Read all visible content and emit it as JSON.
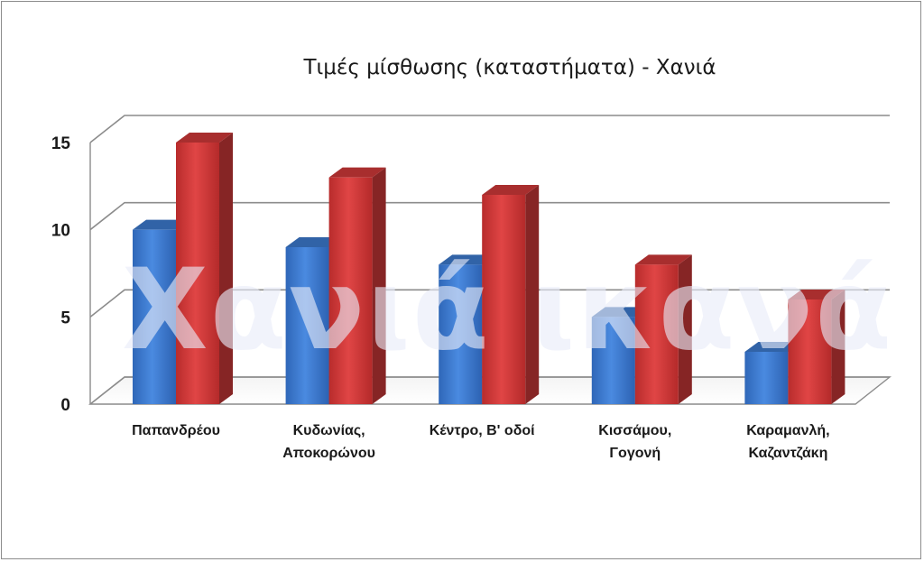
{
  "chart_data": {
    "type": "bar",
    "title": "Τιμές μίσθωσης (καταστήματα) - Χανιά",
    "xlabel": "",
    "ylabel": "",
    "categories": [
      [
        "Παπανδρέου"
      ],
      [
        "Κυδωνίας,",
        "Αποκορώνου"
      ],
      [
        "Κέντρο, Β' οδοί"
      ],
      [
        "Κισσάμου,",
        "Γογονή"
      ],
      [
        "Καραμανλή,",
        "Καζαντζάκη"
      ]
    ],
    "series": [
      {
        "values": [
          10,
          9,
          8,
          5,
          3
        ],
        "color": "#3f7fd6"
      },
      {
        "values": [
          15,
          13,
          12,
          8,
          6
        ],
        "color": "#d83b3b"
      }
    ],
    "ylim": [
      0,
      15
    ],
    "yticks": [
      0,
      5,
      10,
      15
    ],
    "grid": true,
    "three_d": true
  },
  "watermark": "Χανιά ικανά"
}
